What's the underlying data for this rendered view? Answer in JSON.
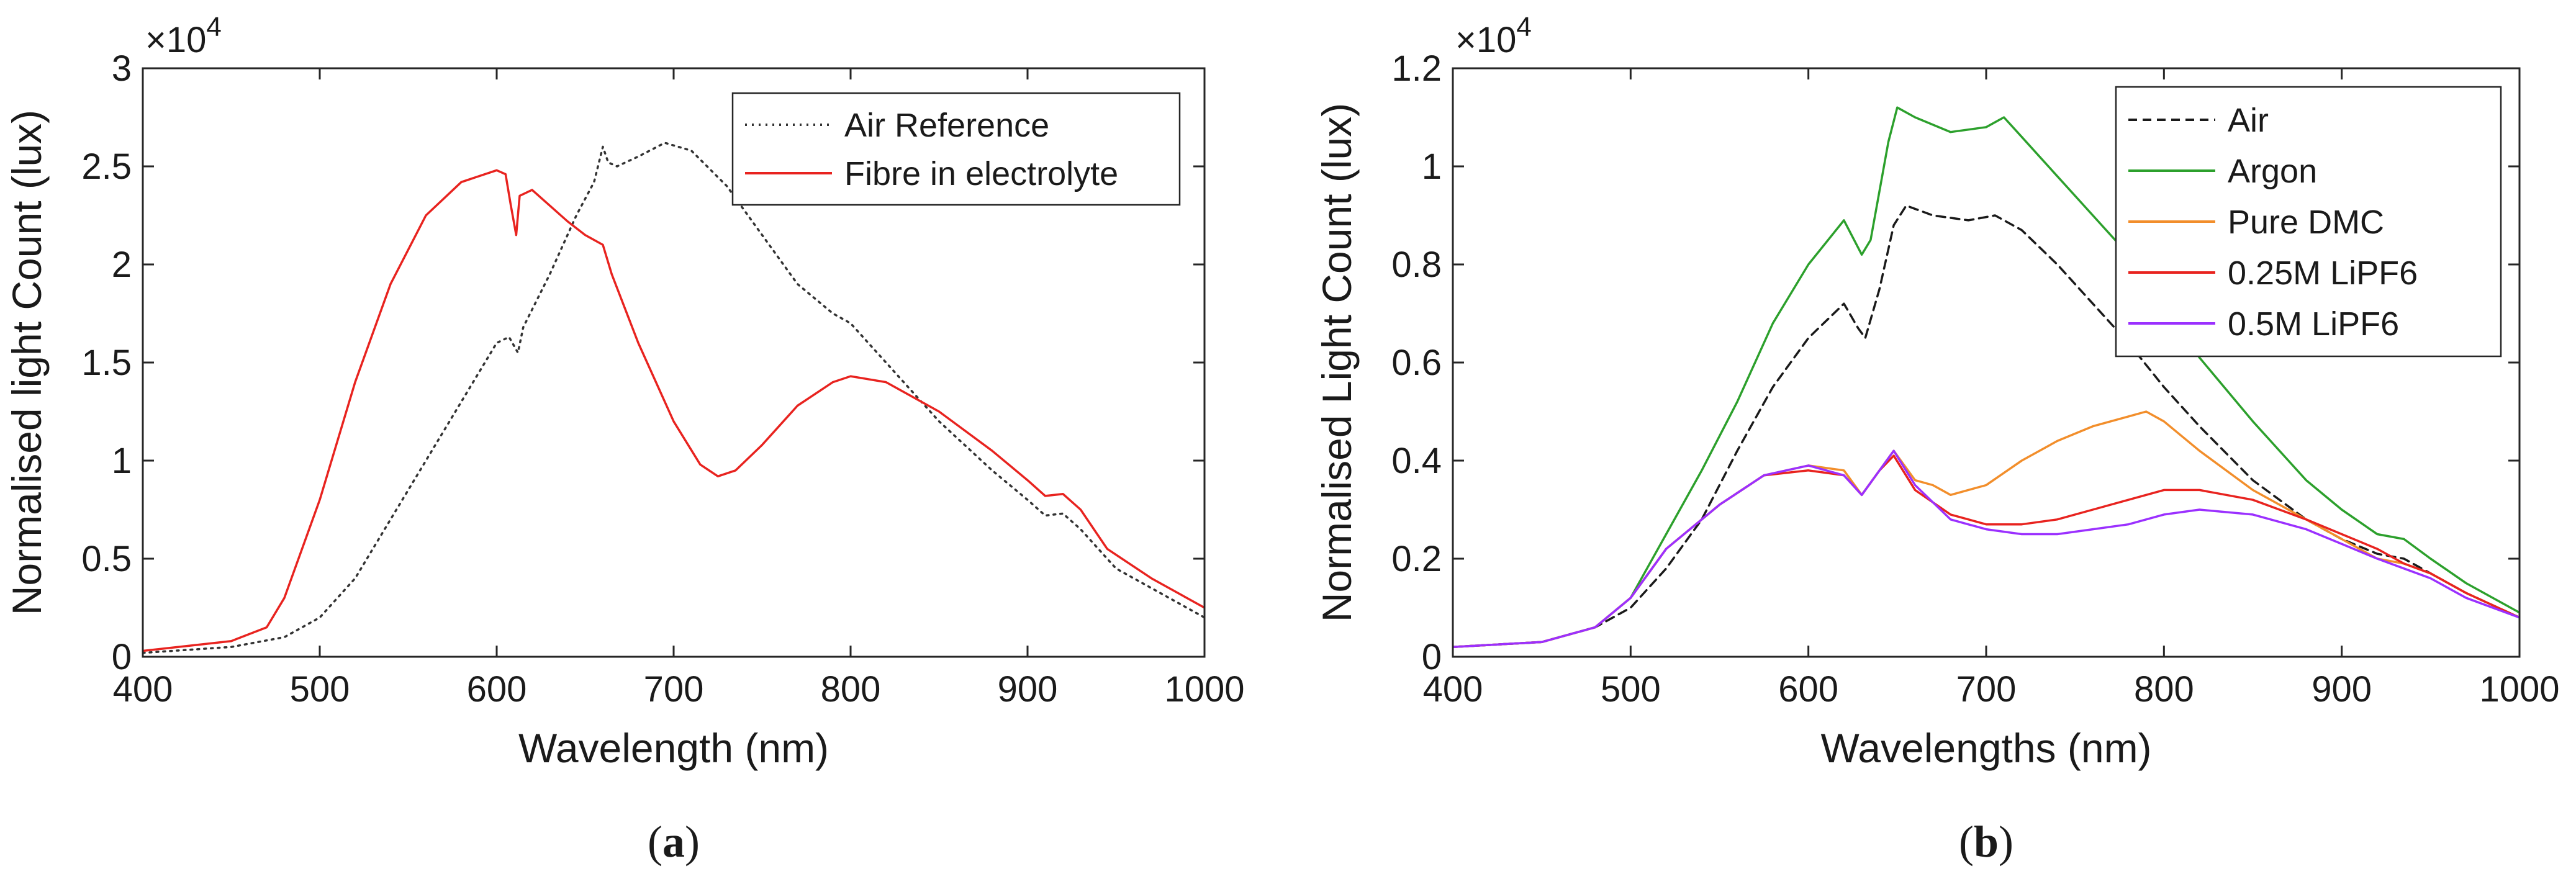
{
  "chart_data": [
    {
      "type": "line",
      "panel_label": "a",
      "caption": {
        "open": "(",
        "label": "a",
        "close": ")"
      },
      "xlabel": "Wavelength (nm)",
      "ylabel": "Normalised light Count (lux)",
      "xlim": [
        400,
        1000
      ],
      "ylim": [
        0,
        3
      ],
      "y_multiplier": {
        "prefix": "×10",
        "exponent": "4"
      },
      "xticks": [
        400,
        500,
        600,
        700,
        800,
        900,
        1000
      ],
      "xtick_labels": [
        "400",
        "500",
        "600",
        "700",
        "800",
        "900",
        "1000"
      ],
      "yticks": [
        0,
        0.5,
        1,
        1.5,
        2,
        2.5,
        3
      ],
      "ytick_labels": [
        "0",
        "0.5",
        "1",
        "1.5",
        "2",
        "2.5",
        "3"
      ],
      "grid": false,
      "legend_position": "top-right",
      "series": [
        {
          "name": "Air Reference",
          "color": "#333333",
          "dash": "dotted",
          "points": [
            [
              400,
              0.02
            ],
            [
              450,
              0.05
            ],
            [
              480,
              0.1
            ],
            [
              500,
              0.2
            ],
            [
              520,
              0.4
            ],
            [
              540,
              0.7
            ],
            [
              560,
              1.0
            ],
            [
              580,
              1.3
            ],
            [
              600,
              1.6
            ],
            [
              607,
              1.63
            ],
            [
              612,
              1.55
            ],
            [
              615,
              1.68
            ],
            [
              630,
              1.95
            ],
            [
              645,
              2.25
            ],
            [
              655,
              2.42
            ],
            [
              660,
              2.6
            ],
            [
              663,
              2.52
            ],
            [
              668,
              2.5
            ],
            [
              680,
              2.55
            ],
            [
              695,
              2.62
            ],
            [
              710,
              2.58
            ],
            [
              730,
              2.4
            ],
            [
              750,
              2.15
            ],
            [
              770,
              1.9
            ],
            [
              790,
              1.75
            ],
            [
              800,
              1.7
            ],
            [
              820,
              1.5
            ],
            [
              850,
              1.2
            ],
            [
              880,
              0.95
            ],
            [
              900,
              0.8
            ],
            [
              910,
              0.72
            ],
            [
              920,
              0.73
            ],
            [
              930,
              0.65
            ],
            [
              950,
              0.45
            ],
            [
              970,
              0.35
            ],
            [
              1000,
              0.2
            ]
          ]
        },
        {
          "name": "Fibre in electrolyte",
          "color": "#e8231f",
          "dash": "solid",
          "points": [
            [
              400,
              0.03
            ],
            [
              450,
              0.08
            ],
            [
              470,
              0.15
            ],
            [
              480,
              0.3
            ],
            [
              500,
              0.8
            ],
            [
              520,
              1.4
            ],
            [
              540,
              1.9
            ],
            [
              560,
              2.25
            ],
            [
              580,
              2.42
            ],
            [
              600,
              2.48
            ],
            [
              605,
              2.46
            ],
            [
              608,
              2.3
            ],
            [
              611,
              2.15
            ],
            [
              613,
              2.35
            ],
            [
              620,
              2.38
            ],
            [
              640,
              2.22
            ],
            [
              650,
              2.15
            ],
            [
              660,
              2.1
            ],
            [
              665,
              1.95
            ],
            [
              680,
              1.6
            ],
            [
              700,
              1.2
            ],
            [
              715,
              0.98
            ],
            [
              725,
              0.92
            ],
            [
              735,
              0.95
            ],
            [
              750,
              1.08
            ],
            [
              770,
              1.28
            ],
            [
              790,
              1.4
            ],
            [
              800,
              1.43
            ],
            [
              820,
              1.4
            ],
            [
              850,
              1.25
            ],
            [
              880,
              1.05
            ],
            [
              900,
              0.9
            ],
            [
              910,
              0.82
            ],
            [
              920,
              0.83
            ],
            [
              930,
              0.75
            ],
            [
              945,
              0.55
            ],
            [
              970,
              0.4
            ],
            [
              1000,
              0.25
            ]
          ]
        }
      ]
    },
    {
      "type": "line",
      "panel_label": "b",
      "caption": {
        "open": "(",
        "label": "b",
        "close": ")"
      },
      "xlabel": "Wavelengths (nm)",
      "ylabel": "Normalised Light Count (lux)",
      "xlim": [
        400,
        1000
      ],
      "ylim": [
        0,
        1.2
      ],
      "y_multiplier": {
        "prefix": "×10",
        "exponent": "4"
      },
      "xticks": [
        400,
        500,
        600,
        700,
        800,
        900,
        1000
      ],
      "xtick_labels": [
        "400",
        "500",
        "600",
        "700",
        "800",
        "900",
        "1000"
      ],
      "yticks": [
        0,
        0.2,
        0.4,
        0.6,
        0.8,
        1,
        1.2
      ],
      "ytick_labels": [
        "0",
        "0.2",
        "0.4",
        "0.6",
        "0.8",
        "1",
        "1.2"
      ],
      "grid": false,
      "legend_position": "top-right",
      "series": [
        {
          "name": "Air",
          "color": "#1a1a1a",
          "dash": "dashed",
          "points": [
            [
              400,
              0.02
            ],
            [
              450,
              0.03
            ],
            [
              480,
              0.06
            ],
            [
              500,
              0.1
            ],
            [
              520,
              0.18
            ],
            [
              540,
              0.28
            ],
            [
              560,
              0.42
            ],
            [
              580,
              0.55
            ],
            [
              600,
              0.65
            ],
            [
              620,
              0.72
            ],
            [
              628,
              0.67
            ],
            [
              632,
              0.65
            ],
            [
              640,
              0.75
            ],
            [
              648,
              0.88
            ],
            [
              655,
              0.92
            ],
            [
              670,
              0.9
            ],
            [
              690,
              0.89
            ],
            [
              705,
              0.9
            ],
            [
              720,
              0.87
            ],
            [
              740,
              0.8
            ],
            [
              760,
              0.72
            ],
            [
              780,
              0.64
            ],
            [
              800,
              0.55
            ],
            [
              820,
              0.47
            ],
            [
              850,
              0.36
            ],
            [
              880,
              0.28
            ],
            [
              900,
              0.24
            ],
            [
              920,
              0.21
            ],
            [
              935,
              0.2
            ],
            [
              950,
              0.17
            ],
            [
              970,
              0.13
            ],
            [
              1000,
              0.08
            ]
          ]
        },
        {
          "name": "Argon",
          "color": "#2ca02c",
          "dash": "solid",
          "points": [
            [
              400,
              0.02
            ],
            [
              450,
              0.03
            ],
            [
              480,
              0.06
            ],
            [
              500,
              0.12
            ],
            [
              520,
              0.25
            ],
            [
              540,
              0.38
            ],
            [
              560,
              0.52
            ],
            [
              580,
              0.68
            ],
            [
              600,
              0.8
            ],
            [
              620,
              0.89
            ],
            [
              630,
              0.82
            ],
            [
              635,
              0.85
            ],
            [
              645,
              1.05
            ],
            [
              650,
              1.12
            ],
            [
              660,
              1.1
            ],
            [
              680,
              1.07
            ],
            [
              700,
              1.08
            ],
            [
              710,
              1.1
            ],
            [
              720,
              1.06
            ],
            [
              740,
              0.98
            ],
            [
              760,
              0.9
            ],
            [
              780,
              0.82
            ],
            [
              800,
              0.72
            ],
            [
              820,
              0.61
            ],
            [
              850,
              0.48
            ],
            [
              880,
              0.36
            ],
            [
              900,
              0.3
            ],
            [
              920,
              0.25
            ],
            [
              935,
              0.24
            ],
            [
              950,
              0.2
            ],
            [
              970,
              0.15
            ],
            [
              1000,
              0.09
            ]
          ]
        },
        {
          "name": "Pure DMC",
          "color": "#f28e2b",
          "dash": "solid",
          "points": [
            [
              400,
              0.02
            ],
            [
              450,
              0.03
            ],
            [
              480,
              0.06
            ],
            [
              500,
              0.12
            ],
            [
              520,
              0.22
            ],
            [
              550,
              0.31
            ],
            [
              575,
              0.37
            ],
            [
              600,
              0.39
            ],
            [
              620,
              0.38
            ],
            [
              630,
              0.33
            ],
            [
              640,
              0.38
            ],
            [
              648,
              0.42
            ],
            [
              660,
              0.36
            ],
            [
              670,
              0.35
            ],
            [
              680,
              0.33
            ],
            [
              700,
              0.35
            ],
            [
              720,
              0.4
            ],
            [
              740,
              0.44
            ],
            [
              760,
              0.47
            ],
            [
              780,
              0.49
            ],
            [
              790,
              0.5
            ],
            [
              800,
              0.48
            ],
            [
              820,
              0.42
            ],
            [
              850,
              0.34
            ],
            [
              880,
              0.28
            ],
            [
              900,
              0.24
            ],
            [
              920,
              0.2
            ],
            [
              935,
              0.19
            ],
            [
              950,
              0.17
            ],
            [
              970,
              0.13
            ],
            [
              1000,
              0.08
            ]
          ]
        },
        {
          "name": "0.25M LiPF6",
          "color": "#e8231f",
          "dash": "solid",
          "points": [
            [
              400,
              0.02
            ],
            [
              450,
              0.03
            ],
            [
              480,
              0.06
            ],
            [
              500,
              0.12
            ],
            [
              520,
              0.22
            ],
            [
              550,
              0.31
            ],
            [
              575,
              0.37
            ],
            [
              600,
              0.38
            ],
            [
              620,
              0.37
            ],
            [
              630,
              0.33
            ],
            [
              640,
              0.38
            ],
            [
              648,
              0.41
            ],
            [
              660,
              0.34
            ],
            [
              680,
              0.29
            ],
            [
              700,
              0.27
            ],
            [
              720,
              0.27
            ],
            [
              740,
              0.28
            ],
            [
              760,
              0.3
            ],
            [
              780,
              0.32
            ],
            [
              800,
              0.34
            ],
            [
              820,
              0.34
            ],
            [
              850,
              0.32
            ],
            [
              880,
              0.28
            ],
            [
              900,
              0.25
            ],
            [
              920,
              0.22
            ],
            [
              935,
              0.19
            ],
            [
              950,
              0.17
            ],
            [
              970,
              0.13
            ],
            [
              1000,
              0.08
            ]
          ]
        },
        {
          "name": "0.5M LiPF6",
          "color": "#9b30ff",
          "dash": "solid",
          "points": [
            [
              400,
              0.02
            ],
            [
              450,
              0.03
            ],
            [
              480,
              0.06
            ],
            [
              500,
              0.12
            ],
            [
              520,
              0.22
            ],
            [
              550,
              0.31
            ],
            [
              575,
              0.37
            ],
            [
              600,
              0.39
            ],
            [
              620,
              0.37
            ],
            [
              630,
              0.33
            ],
            [
              640,
              0.38
            ],
            [
              648,
              0.42
            ],
            [
              660,
              0.35
            ],
            [
              680,
              0.28
            ],
            [
              700,
              0.26
            ],
            [
              720,
              0.25
            ],
            [
              740,
              0.25
            ],
            [
              760,
              0.26
            ],
            [
              780,
              0.27
            ],
            [
              800,
              0.29
            ],
            [
              820,
              0.3
            ],
            [
              850,
              0.29
            ],
            [
              880,
              0.26
            ],
            [
              900,
              0.23
            ],
            [
              920,
              0.2
            ],
            [
              935,
              0.18
            ],
            [
              950,
              0.16
            ],
            [
              970,
              0.12
            ],
            [
              1000,
              0.08
            ]
          ]
        }
      ]
    }
  ]
}
